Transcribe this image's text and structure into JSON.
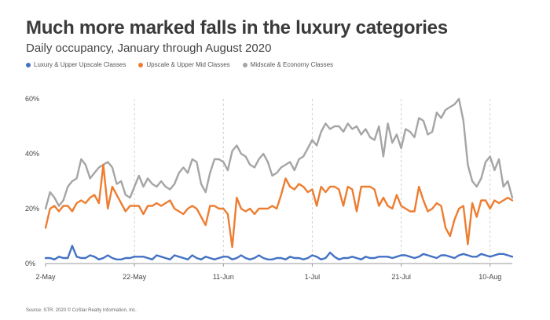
{
  "header": {
    "title": "Much more marked falls in the luxury categories",
    "subtitle": "Daily occupancy, January through August 2020"
  },
  "footer": {
    "source": "Source: STR. 2020 © CoStar Realty Information, Inc."
  },
  "chart_data": {
    "type": "line",
    "title": "Much more marked falls in the luxury categories",
    "subtitle": "Daily occupancy, January through August 2020",
    "x_tick_labels": [
      "2-May",
      "22-May",
      "11-Jun",
      "1-Jul",
      "21-Jul",
      "10-Aug"
    ],
    "y_tick_labels": [
      "0%",
      "20%",
      "40%",
      "60%"
    ],
    "ylim": [
      0,
      60
    ],
    "y_unit": "%",
    "legend_position": "top-left",
    "grid": "dashed vertical lines at x ticks",
    "x": [
      "2020-05-02",
      "2020-05-03",
      "2020-05-04",
      "2020-05-05",
      "2020-05-06",
      "2020-05-07",
      "2020-05-08",
      "2020-05-09",
      "2020-05-10",
      "2020-05-11",
      "2020-05-12",
      "2020-05-13",
      "2020-05-14",
      "2020-05-15",
      "2020-05-16",
      "2020-05-17",
      "2020-05-18",
      "2020-05-19",
      "2020-05-20",
      "2020-05-21",
      "2020-05-22",
      "2020-05-23",
      "2020-05-24",
      "2020-05-25",
      "2020-05-26",
      "2020-05-27",
      "2020-05-28",
      "2020-05-29",
      "2020-05-30",
      "2020-05-31",
      "2020-06-01",
      "2020-06-02",
      "2020-06-03",
      "2020-06-04",
      "2020-06-05",
      "2020-06-06",
      "2020-06-07",
      "2020-06-08",
      "2020-06-09",
      "2020-06-10",
      "2020-06-11",
      "2020-06-12",
      "2020-06-13",
      "2020-06-14",
      "2020-06-15",
      "2020-06-16",
      "2020-06-17",
      "2020-06-18",
      "2020-06-19",
      "2020-06-20",
      "2020-06-21",
      "2020-06-22",
      "2020-06-23",
      "2020-06-24",
      "2020-06-25",
      "2020-06-26",
      "2020-06-27",
      "2020-06-28",
      "2020-06-29",
      "2020-06-30",
      "2020-07-01",
      "2020-07-02",
      "2020-07-03",
      "2020-07-04",
      "2020-07-05",
      "2020-07-06",
      "2020-07-07",
      "2020-07-08",
      "2020-07-09",
      "2020-07-10",
      "2020-07-11",
      "2020-07-12",
      "2020-07-13",
      "2020-07-14",
      "2020-07-15",
      "2020-07-16",
      "2020-07-17",
      "2020-07-18",
      "2020-07-19",
      "2020-07-20",
      "2020-07-21",
      "2020-07-22",
      "2020-07-23",
      "2020-07-24",
      "2020-07-25",
      "2020-07-26",
      "2020-07-27",
      "2020-07-28",
      "2020-07-29",
      "2020-07-30",
      "2020-07-31",
      "2020-08-01",
      "2020-08-02",
      "2020-08-03",
      "2020-08-04",
      "2020-08-05",
      "2020-08-06",
      "2020-08-07",
      "2020-08-08",
      "2020-08-09",
      "2020-08-10",
      "2020-08-11",
      "2020-08-12",
      "2020-08-13",
      "2020-08-14",
      "2020-08-15"
    ],
    "series": [
      {
        "name": "Luxury & Upper Upscale Classes",
        "color": "#4472c4",
        "values": [
          2,
          2,
          1.5,
          2.5,
          2,
          2,
          6.5,
          2.5,
          2,
          2,
          3,
          2.5,
          1.5,
          2,
          3,
          2,
          1.5,
          1.5,
          2,
          2,
          2.5,
          2.5,
          2.5,
          2,
          1.5,
          3,
          2.5,
          2,
          1.5,
          3,
          2.5,
          2,
          1.5,
          3,
          2,
          1.5,
          2.5,
          2,
          1.5,
          2,
          2.5,
          2.5,
          1.5,
          2,
          3,
          2,
          1.5,
          2,
          3,
          2,
          1.5,
          1.5,
          2,
          2,
          1.5,
          2.5,
          2,
          2,
          1.5,
          2,
          3,
          2.5,
          1.5,
          2,
          4,
          2.5,
          1.5,
          2,
          2,
          2.5,
          2,
          1.5,
          2.5,
          2,
          2,
          2.5,
          2.5,
          2.5,
          2,
          2.5,
          3,
          3,
          2.5,
          2,
          2.5,
          3.5,
          3,
          2.5,
          2,
          3,
          3,
          2.5,
          2,
          3,
          3.5,
          3,
          2.5,
          2.5,
          3.5,
          3,
          2.5,
          3,
          3.5,
          3.5,
          3,
          2.5
        ]
      },
      {
        "name": "Upscale & Upper Mid Classes",
        "color": "#ed7d31",
        "values": [
          13,
          20,
          21,
          19,
          21,
          21,
          19,
          22,
          23,
          22,
          24,
          25,
          22,
          36,
          20,
          28,
          25,
          22,
          19,
          21,
          21,
          21,
          18,
          21,
          21,
          22,
          21,
          22,
          23,
          20,
          19,
          18,
          20,
          21,
          20,
          17,
          14,
          21,
          21,
          20,
          20,
          18,
          6,
          24,
          20,
          19,
          20,
          18,
          20,
          20,
          20,
          21,
          20,
          25,
          31,
          28,
          27,
          29,
          28,
          26,
          27,
          21,
          28,
          26,
          28,
          28,
          27,
          21,
          28,
          27,
          19,
          28,
          28,
          28,
          27,
          21,
          24,
          21,
          20,
          25,
          21,
          20,
          19,
          19,
          28,
          23,
          19,
          20,
          22,
          21,
          13,
          10,
          16,
          20,
          21,
          7,
          22,
          17,
          23,
          23,
          20,
          23,
          22,
          23,
          24,
          23
        ]
      },
      {
        "name": "Midscale & Economy Classes",
        "color": "#a5a5a5",
        "values": [
          20,
          26,
          24,
          21,
          23,
          28,
          30,
          31,
          38,
          36,
          31,
          33,
          35,
          36,
          37,
          35,
          29,
          30,
          25,
          24,
          28,
          32,
          28,
          31,
          29,
          28,
          30,
          28,
          27,
          29,
          33,
          35,
          33,
          38,
          37,
          29,
          26,
          33,
          38,
          38,
          37,
          34,
          41,
          43,
          40,
          39,
          36,
          35,
          38,
          40,
          37,
          32,
          33,
          35,
          36,
          37,
          34,
          38,
          39,
          42,
          45,
          43,
          48,
          51,
          49,
          50,
          50,
          48,
          51,
          49,
          50,
          47,
          49,
          46,
          45,
          50,
          39,
          51,
          44,
          47,
          42,
          49,
          48,
          46,
          53,
          52,
          47,
          48,
          55,
          53,
          56,
          57,
          58,
          60,
          52,
          36,
          30,
          28,
          31,
          37,
          39,
          34,
          38,
          28,
          30,
          24
        ]
      }
    ]
  }
}
